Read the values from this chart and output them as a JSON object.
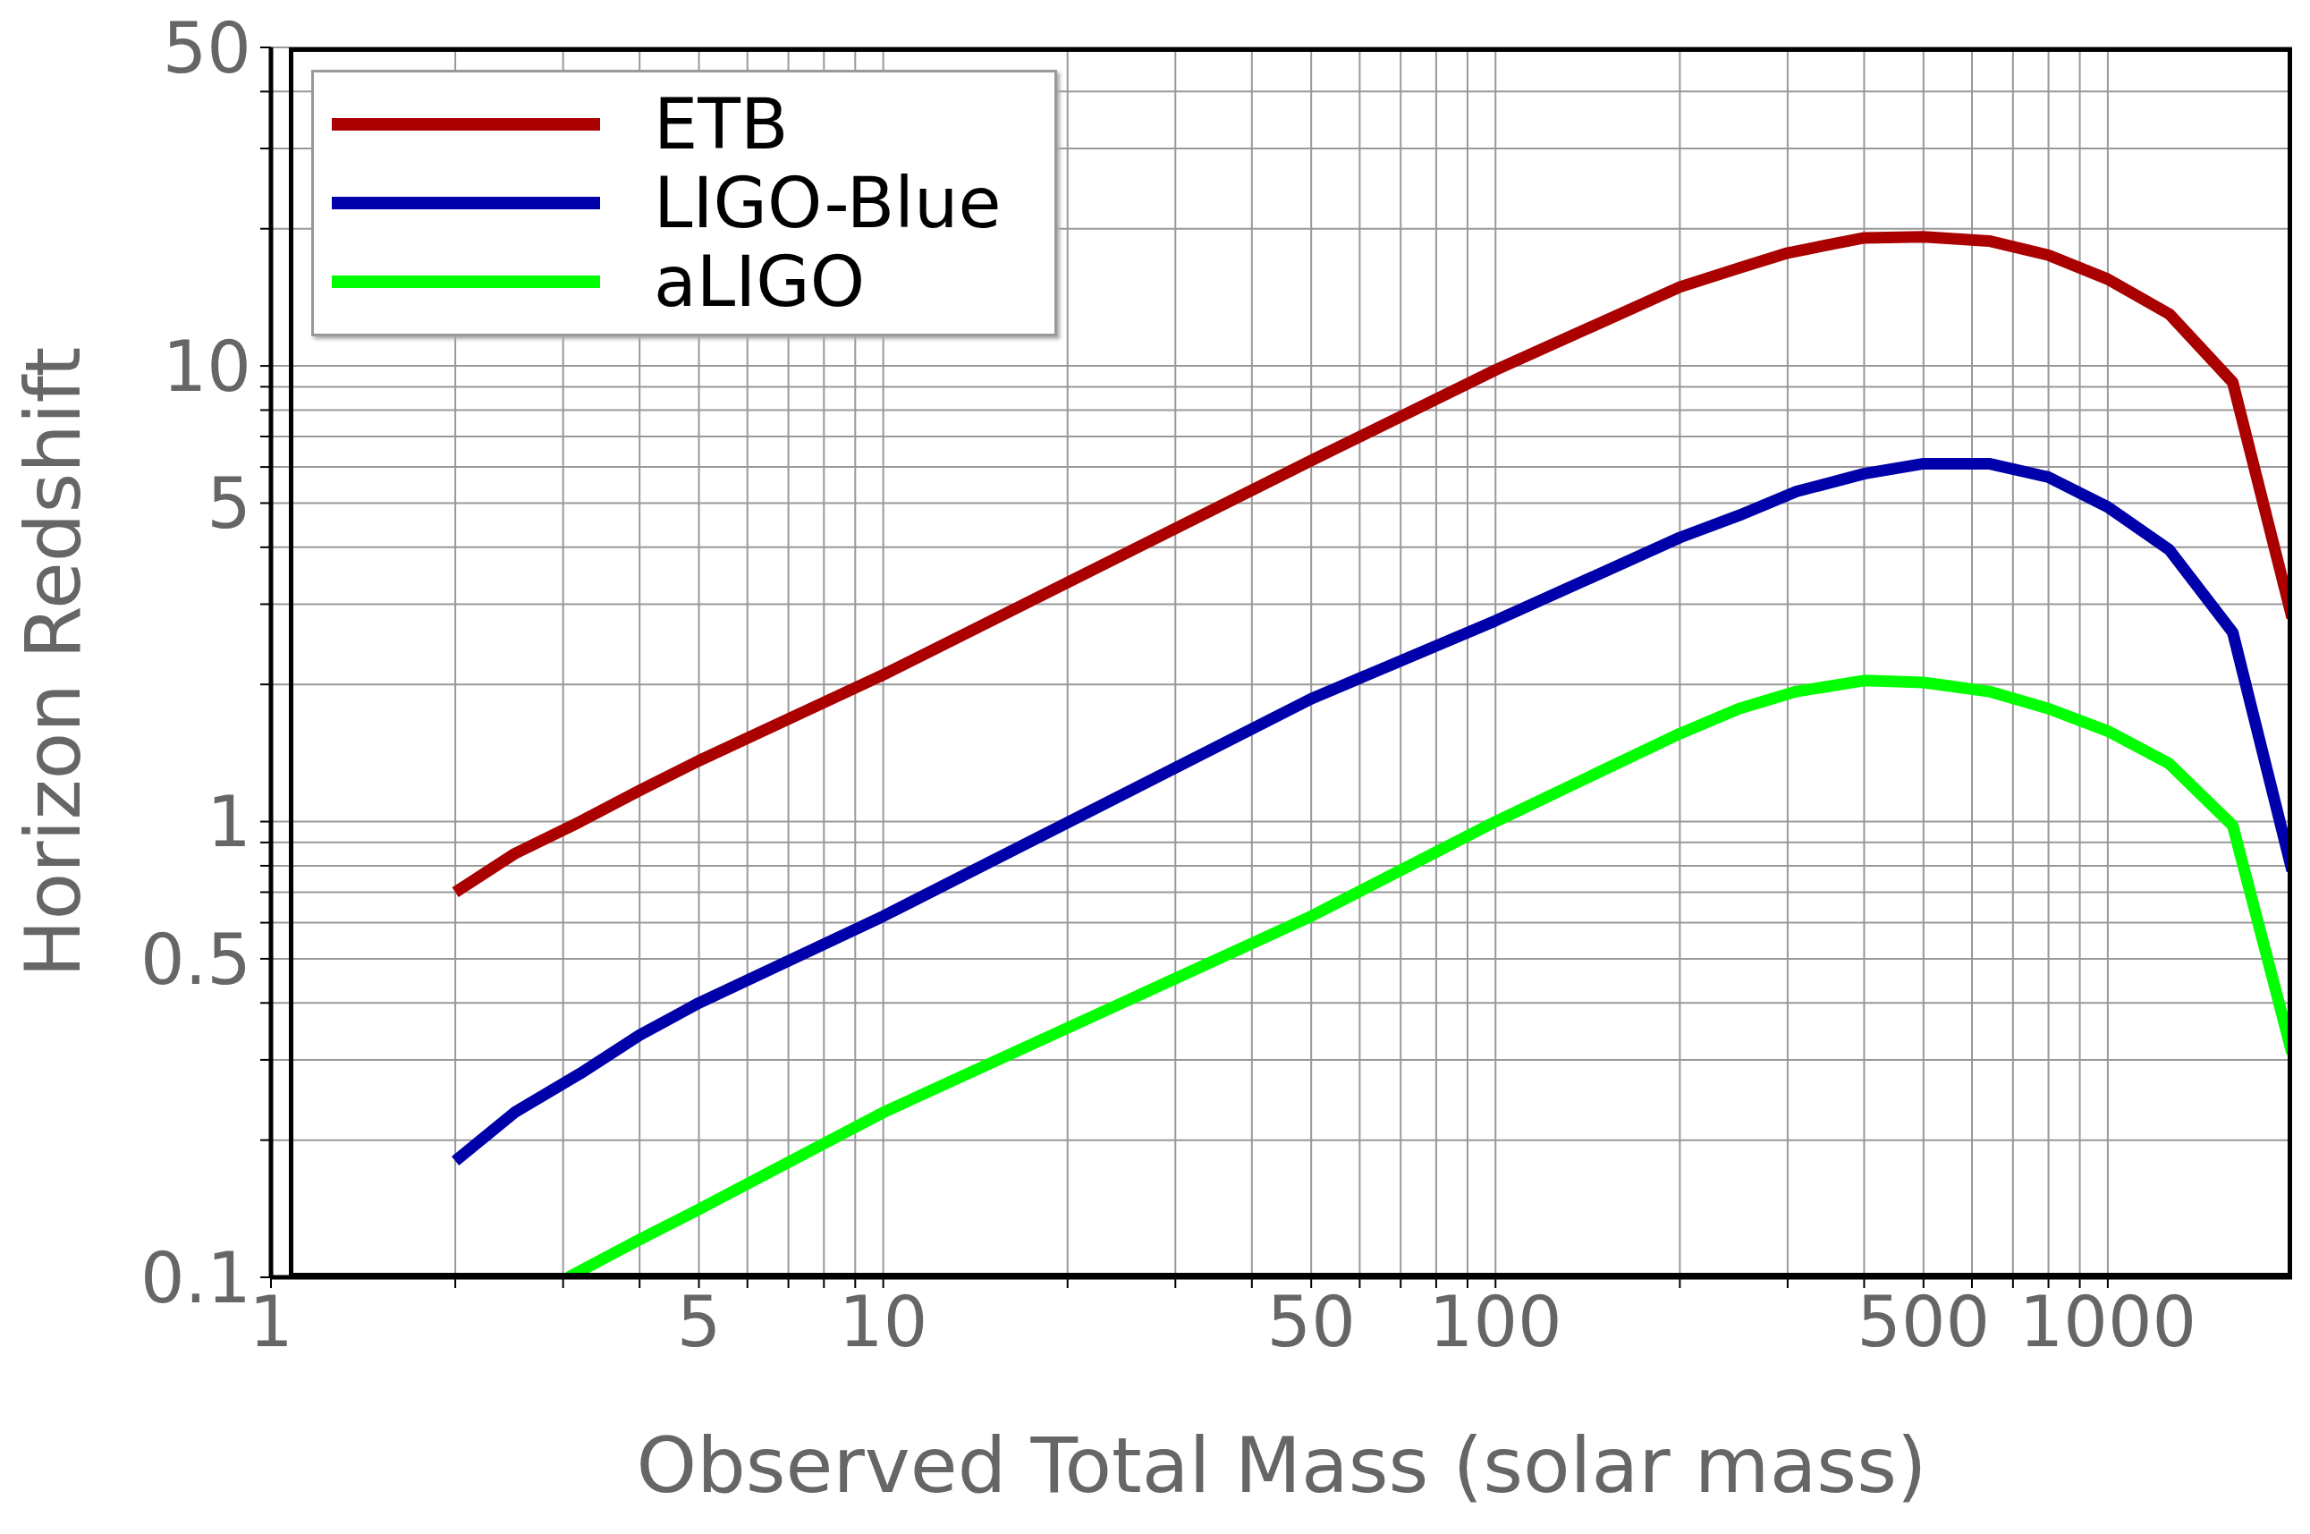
{
  "chart_data": {
    "type": "line",
    "xlabel": "Observed Total Mass (solar mass)",
    "ylabel": "Horizon Redshift",
    "log": "xy",
    "grid": true,
    "legend": "top left",
    "marker": "none",
    "line_style": "solid",
    "xlim": [
      1,
      2000
    ],
    "ylim": [
      0.1,
      50
    ],
    "xticks": [
      1,
      {
        "value": 2,
        "label": null
      },
      {
        "value": 3,
        "label": null
      },
      {
        "value": 4,
        "label": null
      },
      5,
      {
        "value": 6,
        "label": null
      },
      {
        "value": 7,
        "label": null
      },
      {
        "value": 8,
        "label": null
      },
      {
        "value": 9,
        "label": null
      },
      10,
      {
        "value": 20,
        "label": null
      },
      {
        "value": 30,
        "label": null
      },
      {
        "value": 40,
        "label": null
      },
      50,
      {
        "value": 60,
        "label": null
      },
      {
        "value": 70,
        "label": null
      },
      {
        "value": 80,
        "label": null
      },
      {
        "value": 90,
        "label": null
      },
      100,
      {
        "value": 200,
        "label": null
      },
      {
        "value": 300,
        "label": null
      },
      {
        "value": 400,
        "label": null
      },
      500,
      {
        "value": 600,
        "label": null
      },
      {
        "value": 700,
        "label": null
      },
      {
        "value": 800,
        "label": null
      },
      {
        "value": 900,
        "label": null
      },
      1000
    ],
    "yticks": [
      0.1,
      {
        "value": 0.2,
        "label": null
      },
      {
        "value": 0.3,
        "label": null
      },
      {
        "value": 0.4,
        "label": null
      },
      0.5,
      {
        "value": 0.6,
        "label": null
      },
      {
        "value": 0.7,
        "label": null
      },
      {
        "value": 0.8,
        "label": null
      },
      {
        "value": 0.9,
        "label": null
      },
      1,
      {
        "value": 2,
        "label": null
      },
      {
        "value": 3,
        "label": null
      },
      {
        "value": 4,
        "label": null
      },
      5,
      {
        "value": 6,
        "label": null
      },
      {
        "value": 7,
        "label": null
      },
      {
        "value": 8,
        "label": null
      },
      {
        "value": 9,
        "label": null
      },
      10,
      {
        "value": 20,
        "label": null
      },
      {
        "value": 30,
        "label": null
      },
      {
        "value": 40,
        "label": null
      },
      50
    ],
    "series": [
      {
        "name": "ETB",
        "color": "#aa0000",
        "x": [
          2,
          2.5,
          3.2,
          4,
          5,
          10,
          50,
          100,
          200,
          250,
          300,
          400,
          500,
          640,
          800,
          1000,
          1260,
          1600,
          2000
        ],
        "values": [
          0.7,
          0.85,
          1.0,
          1.17,
          1.36,
          2.1,
          6.2,
          9.8,
          14.9,
          16.4,
          17.7,
          19.1,
          19.2,
          18.8,
          17.5,
          15.5,
          13,
          9.2,
          2.8
        ]
      },
      {
        "name": "LIGO-Blue",
        "color": "#0000aa",
        "x": [
          2,
          2.5,
          3.2,
          4,
          5,
          10,
          50,
          100,
          200,
          250,
          310,
          400,
          500,
          640,
          800,
          1000,
          1260,
          1600,
          2000
        ],
        "values": [
          0.18,
          0.23,
          0.28,
          0.34,
          0.4,
          0.62,
          1.86,
          2.76,
          4.2,
          4.7,
          5.3,
          5.8,
          6.1,
          6.1,
          5.7,
          4.9,
          3.95,
          2.6,
          0.78
        ]
      },
      {
        "name": "aLIGO",
        "color": "#00ff00",
        "x": [
          3.06,
          4,
          5,
          10,
          50,
          100,
          200,
          250,
          310,
          400,
          500,
          640,
          800,
          1000,
          1260,
          1600,
          2000
        ],
        "values": [
          0.1,
          0.121,
          0.141,
          0.23,
          0.62,
          1.0,
          1.56,
          1.77,
          1.93,
          2.04,
          2.02,
          1.93,
          1.77,
          1.58,
          1.34,
          0.98,
          0.31
        ]
      }
    ]
  }
}
